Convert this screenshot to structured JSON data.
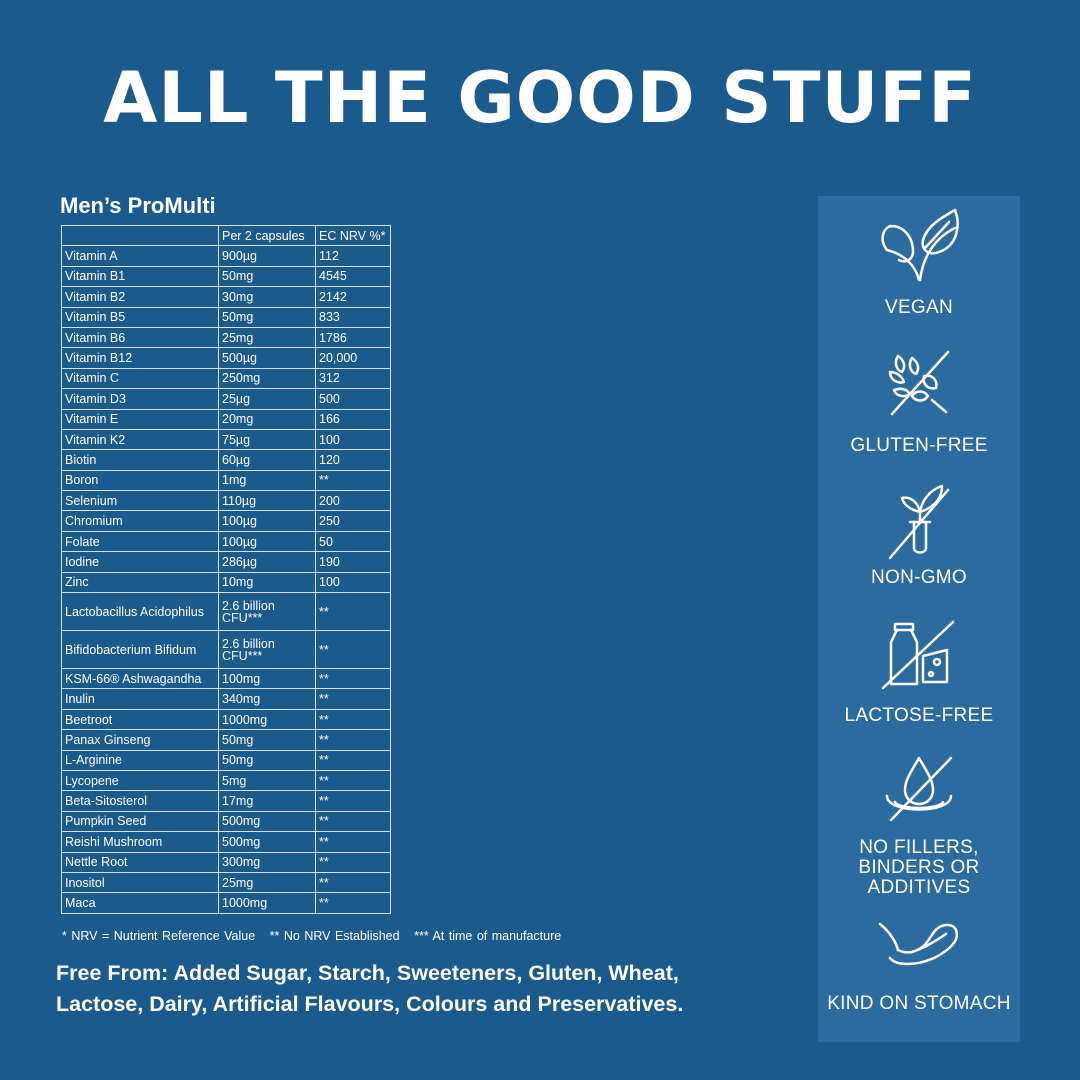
{
  "headline": "ALL THE GOOD STUFF",
  "product": {
    "title": "Men’s ProMulti",
    "columns": [
      "",
      "Per 2 capsules",
      "EC NRV %*"
    ],
    "rows": [
      [
        "Vitamin A",
        "900µg",
        "112"
      ],
      [
        "Vitamin B1",
        "50mg",
        "4545"
      ],
      [
        "Vitamin B2",
        "30mg",
        "2142"
      ],
      [
        "Vitamin B5",
        "50mg",
        "833"
      ],
      [
        "Vitamin B6",
        "25mg",
        "1786"
      ],
      [
        "Vitamin B12",
        "500µg",
        "20,000"
      ],
      [
        "Vitamin C",
        "250mg",
        "312"
      ],
      [
        "Vitamin D3",
        "25µg",
        "500"
      ],
      [
        "Vitamin E",
        "20mg",
        "166"
      ],
      [
        "Vitamin K2",
        "75µg",
        "100"
      ],
      [
        "Biotin",
        "60µg",
        "120"
      ],
      [
        "Boron",
        "1mg",
        "**"
      ],
      [
        "Selenium",
        "110µg",
        "200"
      ],
      [
        "Chromium",
        "100µg",
        "250"
      ],
      [
        "Folate",
        "100µg",
        "50"
      ],
      [
        "Iodine",
        "286µg",
        "190"
      ],
      [
        "Zinc",
        "10mg",
        "100"
      ],
      [
        "Lactobacillus Acidophilus",
        "2.6 billion CFU***",
        "**"
      ],
      [
        "Bifidobacterium Bifidum",
        "2.6 billion CFU***",
        "**"
      ],
      [
        "KSM-66® Ashwagandha",
        "100mg",
        "**"
      ],
      [
        "Inulin",
        "340mg",
        "**"
      ],
      [
        "Beetroot",
        "1000mg",
        "**"
      ],
      [
        "Panax Ginseng",
        "50mg",
        "**"
      ],
      [
        "L-Arginine",
        "50mg",
        "**"
      ],
      [
        "Lycopene",
        "5mg",
        "**"
      ],
      [
        "Beta-Sitosterol",
        "17mg",
        "**"
      ],
      [
        "Pumpkin Seed",
        "500mg",
        "**"
      ],
      [
        "Reishi Mushroom",
        "500mg",
        "**"
      ],
      [
        "Nettle Root",
        "300mg",
        "**"
      ],
      [
        "Inositol",
        "25mg",
        "**"
      ],
      [
        "Maca",
        "1000mg",
        "**"
      ]
    ],
    "footnotes": [
      "* NRV = Nutrient Reference Value",
      "** No NRV Established",
      "*** At time of manufacture"
    ],
    "free_from": "Free From: Added Sugar, Starch, Sweeteners, Gluten, Wheat, Lactose, Dairy, Artificial Flavours, Colours and Preservatives."
  },
  "badges": [
    {
      "icon": "leaf-icon",
      "label": "VEGAN"
    },
    {
      "icon": "wheat-crossed-icon",
      "label": "GLUTEN-FREE"
    },
    {
      "icon": "sprout-test-tube-crossed-icon",
      "label": "NON-GMO"
    },
    {
      "icon": "milk-cheese-crossed-icon",
      "label": "LACTOSE-FREE"
    },
    {
      "icon": "drop-crossed-icon",
      "label": "NO FILLERS, BINDERS OR ADDITIVES"
    },
    {
      "icon": "stomach-feather-icon",
      "label": "KIND ON STOMACH"
    }
  ],
  "colors": {
    "background": "#1a5a8c",
    "panel": "#2c6ba0",
    "text": "#ffffff"
  }
}
